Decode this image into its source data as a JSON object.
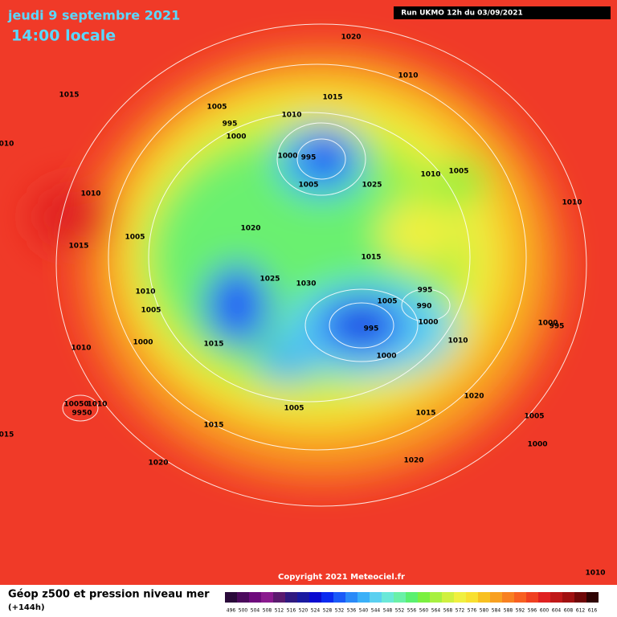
{
  "header": {
    "date": "jeudi 9 septembre 2021",
    "time": "14:00 locale",
    "run": "Run UKMO 12h du 03/09/2021"
  },
  "isobar_labels": [
    "1020",
    "1010",
    "1015",
    "1015",
    "1005",
    "1010",
    "995",
    "1000",
    "010",
    "1000",
    "995",
    "1005",
    "1010",
    "1005",
    "1025",
    "1010",
    "1010",
    "1020",
    "1005",
    "1015",
    "1015",
    "1025",
    "1030",
    "995",
    "1010",
    "990",
    "1005",
    "1005",
    "1000",
    "1000",
    "995",
    "995",
    "1010",
    "1000",
    "1015",
    "1010",
    "1000",
    "1020",
    "10050",
    "1010",
    "9950",
    "1005",
    "1015",
    "1005",
    "015",
    "1015",
    "1000",
    "1020",
    "1020",
    "1010"
  ],
  "copyright": "Copyright 2021 Meteociel.fr",
  "legend": {
    "title": "Géop z500 et pression niveau mer",
    "subtitle": "(+144h)",
    "scale": [
      {
        "value": 496,
        "color": "#2a0a3a"
      },
      {
        "value": 500,
        "color": "#4b0a5c"
      },
      {
        "value": 504,
        "color": "#6e0a7c"
      },
      {
        "value": 508,
        "color": "#8a1a8e"
      },
      {
        "value": 512,
        "color": "#5a1a6e"
      },
      {
        "value": 516,
        "color": "#301a80"
      },
      {
        "value": 520,
        "color": "#1a1aa0"
      },
      {
        "value": 524,
        "color": "#0a0ad0"
      },
      {
        "value": 528,
        "color": "#0a2af0"
      },
      {
        "value": 532,
        "color": "#1a5af8"
      },
      {
        "value": 536,
        "color": "#2a8af8"
      },
      {
        "value": 540,
        "color": "#3ab0f8"
      },
      {
        "value": 544,
        "color": "#5ad0f0"
      },
      {
        "value": 548,
        "color": "#6ae8d8"
      },
      {
        "value": 552,
        "color": "#6af0a8"
      },
      {
        "value": 556,
        "color": "#5af070"
      },
      {
        "value": 560,
        "color": "#7af040"
      },
      {
        "value": 564,
        "color": "#a8f040"
      },
      {
        "value": 568,
        "color": "#d0f040"
      },
      {
        "value": 572,
        "color": "#f0f040"
      },
      {
        "value": 576,
        "color": "#f8e030"
      },
      {
        "value": 580,
        "color": "#f8c020"
      },
      {
        "value": 584,
        "color": "#f8a020"
      },
      {
        "value": 588,
        "color": "#f88020"
      },
      {
        "value": 592,
        "color": "#f86020"
      },
      {
        "value": 596,
        "color": "#f04020"
      },
      {
        "value": 600,
        "color": "#e02020"
      },
      {
        "value": 604,
        "color": "#c01818"
      },
      {
        "value": 608,
        "color": "#a01010"
      },
      {
        "value": 612,
        "color": "#700808"
      },
      {
        "value": 616,
        "color": "#300404"
      }
    ]
  }
}
